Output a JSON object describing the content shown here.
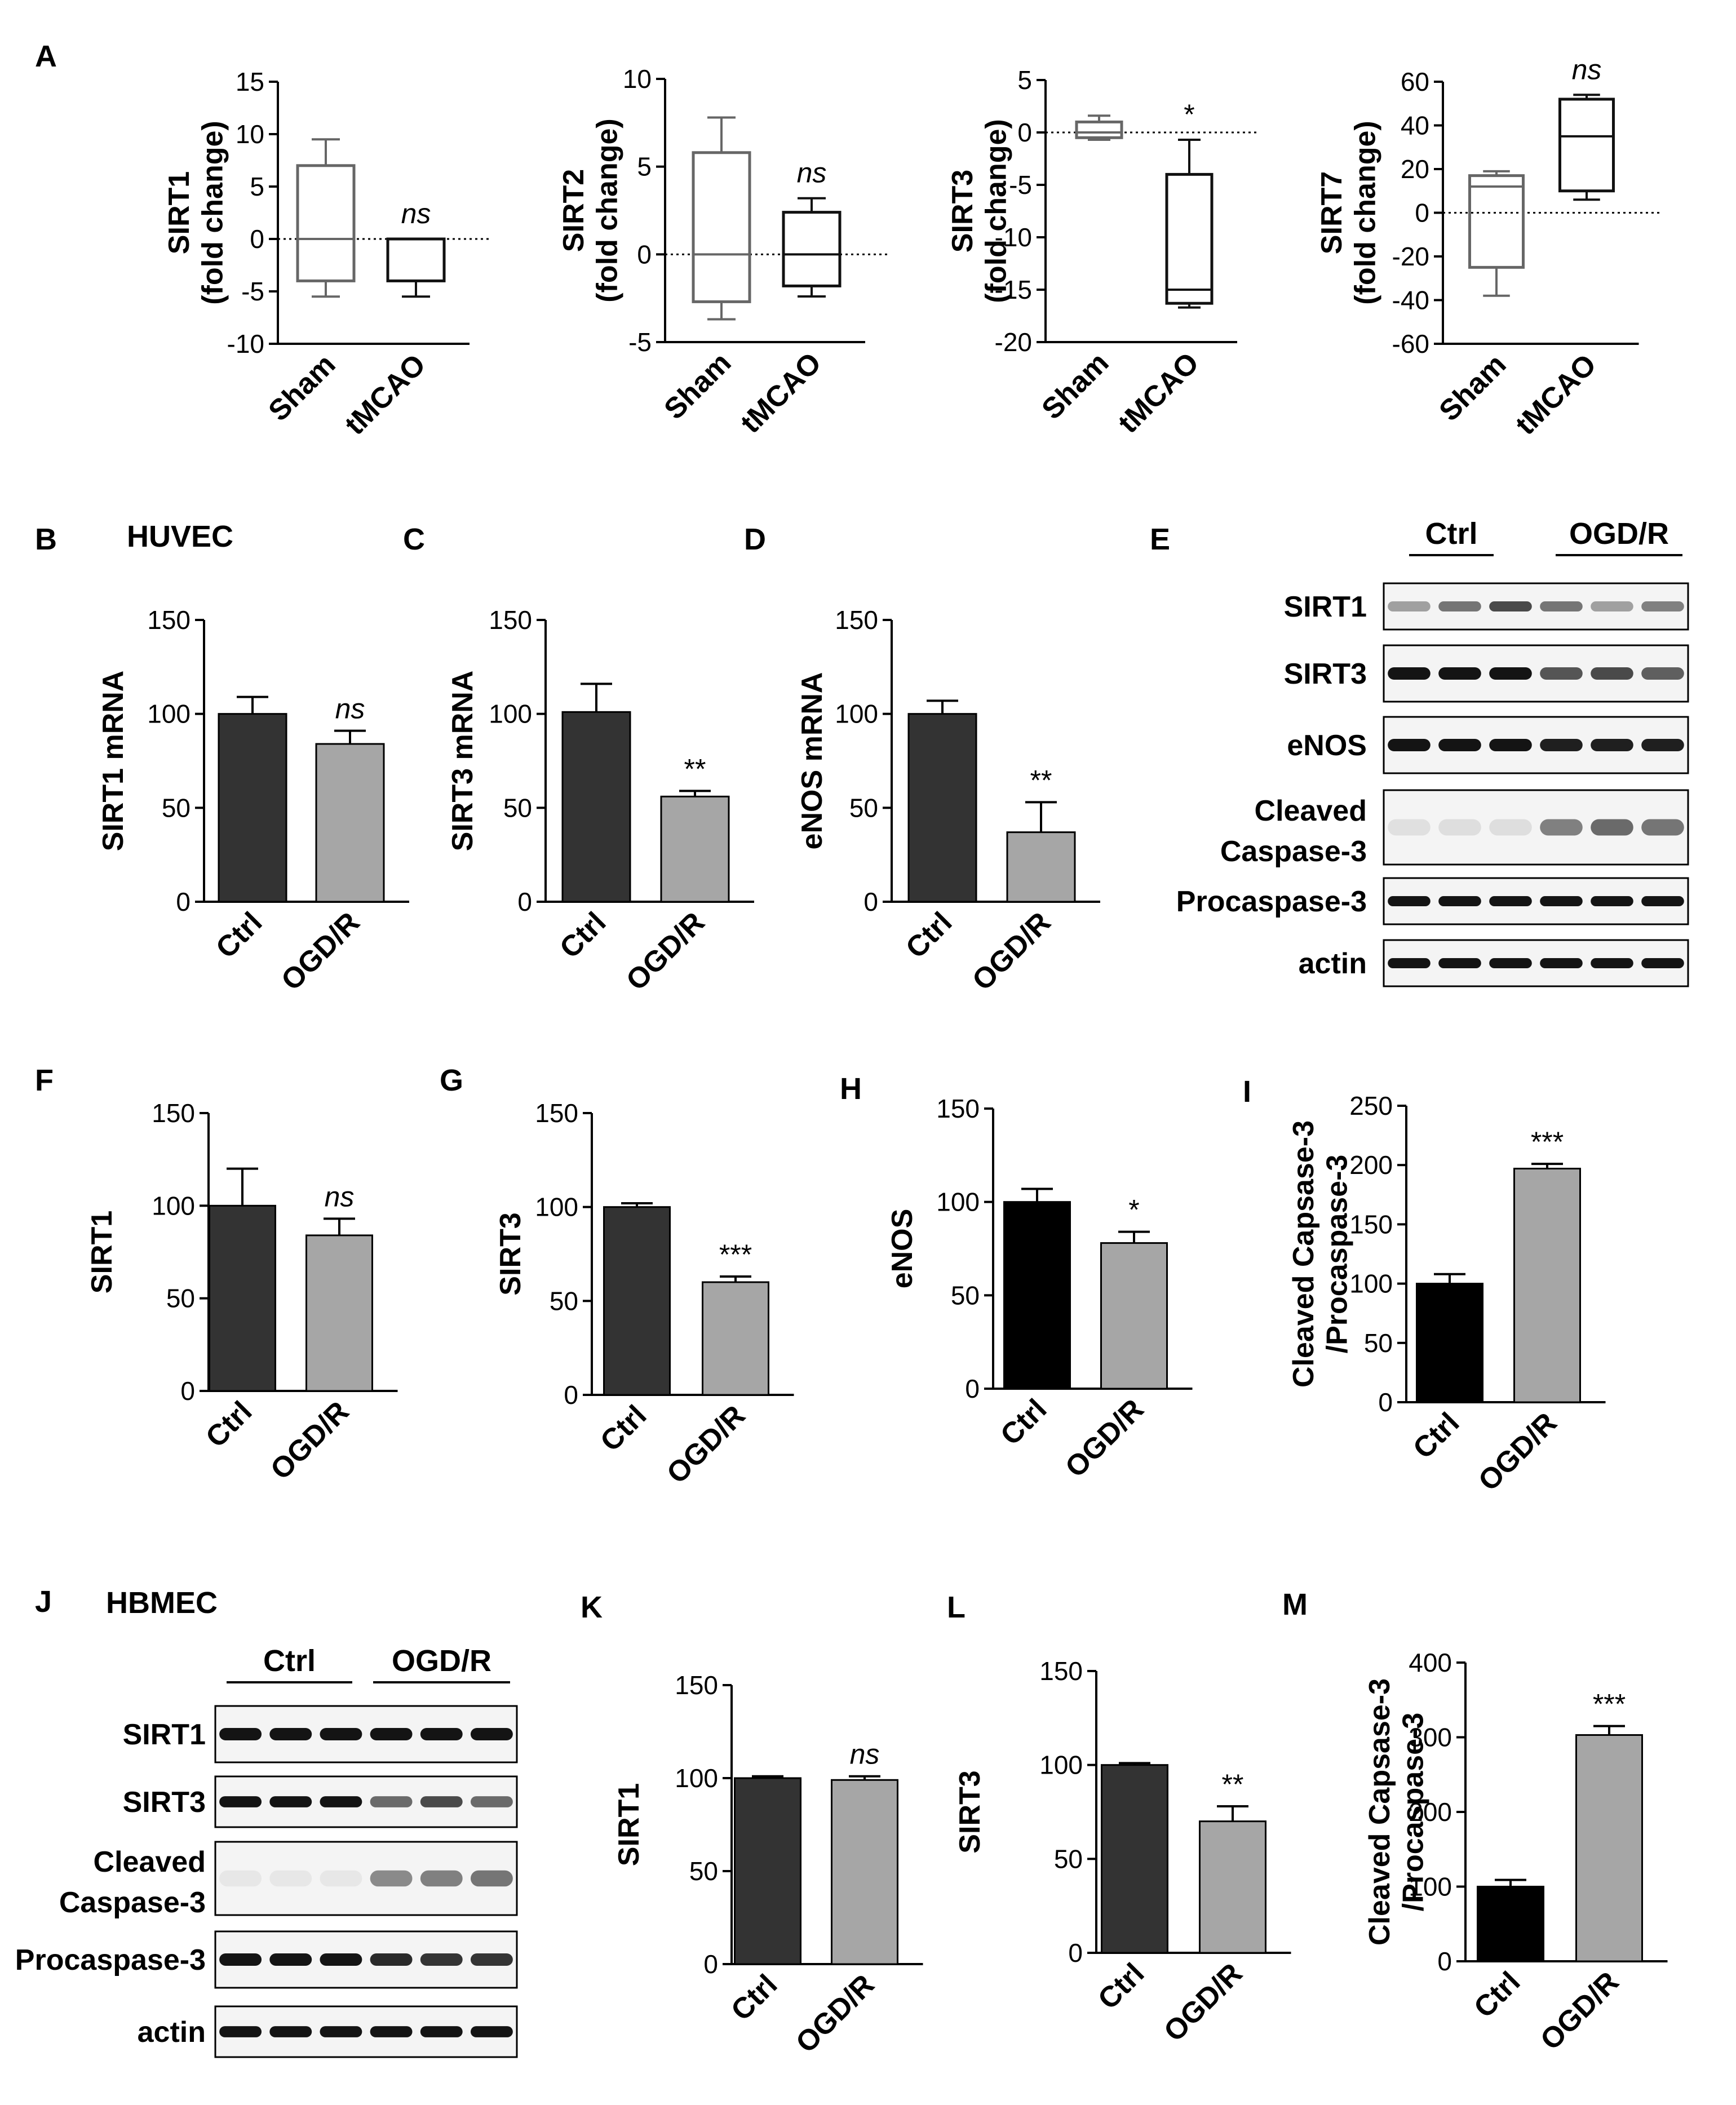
{
  "panel_letters": {
    "A": "A",
    "B": "B",
    "C": "C",
    "D": "D",
    "E": "E",
    "F": "F",
    "G": "G",
    "H": "H",
    "I": "I",
    "J": "J",
    "K": "K",
    "L": "L",
    "M": "M"
  },
  "cell_labels": {
    "huvec": "HUVEC",
    "hbmec": "HBMEC"
  },
  "colors": {
    "ctrl_bar": "#333333",
    "ctrl_bar_black": "#000000",
    "ogdr_bar": "#a6a6a6",
    "box_sham": "#666666",
    "box_tmcao": "#111111",
    "axis": "#000000"
  },
  "chart_data": [
    {
      "id": "A1",
      "panel": "A",
      "type": "box",
      "ylabel": "SIRT1\n(fold change)",
      "ylim": [
        -10,
        15
      ],
      "yticks": [
        "15",
        "10",
        "5",
        "0",
        "-5",
        "-10"
      ],
      "categories": [
        "Sham",
        "tMCAO"
      ],
      "zero_line": true,
      "boxes": [
        {
          "min": -5.5,
          "q1": -4,
          "median": 0,
          "q3": 7,
          "max": 9.5
        },
        {
          "min": -5.5,
          "q1": -4,
          "median": 0,
          "q3": 0,
          "max": 0
        }
      ],
      "annotations": [
        "",
        "ns"
      ]
    },
    {
      "id": "A2",
      "panel": "A",
      "type": "box",
      "ylabel": "SIRT2\n(fold change)",
      "ylim": [
        -5,
        10
      ],
      "yticks": [
        "10",
        "5",
        "0",
        "-5"
      ],
      "categories": [
        "Sham",
        "tMCAO"
      ],
      "zero_line": true,
      "boxes": [
        {
          "min": -3.7,
          "q1": -2.7,
          "median": 0,
          "q3": 5.8,
          "max": 7.8
        },
        {
          "min": -2.4,
          "q1": -1.8,
          "median": 0,
          "q3": 2.4,
          "max": 3.2
        }
      ],
      "annotations": [
        "",
        "ns"
      ]
    },
    {
      "id": "A3",
      "panel": "A",
      "type": "box",
      "ylabel": "SIRT3\n(fold change)",
      "ylim": [
        -20,
        5
      ],
      "yticks": [
        "5",
        "0",
        "-5",
        "-10",
        "-15",
        "-20"
      ],
      "categories": [
        "Sham",
        "tMCAO"
      ],
      "zero_line": true,
      "boxes": [
        {
          "min": -0.7,
          "q1": -0.5,
          "median": 0,
          "q3": 1,
          "max": 1.6
        },
        {
          "min": -16.7,
          "q1": -16.3,
          "median": -15,
          "q3": -4,
          "max": -0.7
        }
      ],
      "annotations": [
        "",
        "*"
      ]
    },
    {
      "id": "A4",
      "panel": "A",
      "type": "box",
      "ylabel": "SIRT7\n(fold change)",
      "ylim": [
        -60,
        60
      ],
      "yticks": [
        "60",
        "40",
        "20",
        "0",
        "-20",
        "-40",
        "-60"
      ],
      "categories": [
        "Sham",
        "tMCAO"
      ],
      "zero_line": true,
      "boxes": [
        {
          "min": -38,
          "q1": -25,
          "median": 12,
          "q3": 17,
          "max": 19
        },
        {
          "min": 6,
          "q1": 10,
          "median": 35,
          "q3": 52,
          "max": 54
        }
      ],
      "annotations": [
        "",
        "ns"
      ]
    },
    {
      "id": "B",
      "panel": "B",
      "type": "bar",
      "ylabel": "SIRT1 mRNA",
      "ylim": [
        0,
        150
      ],
      "yticks": [
        "150",
        "100",
        "50",
        "0"
      ],
      "categories": [
        "Ctrl",
        "OGD/R"
      ],
      "values": [
        100,
        84
      ],
      "errors": [
        9,
        7
      ],
      "annotations": [
        "",
        "ns"
      ]
    },
    {
      "id": "C",
      "panel": "C",
      "type": "bar",
      "ylabel": "SIRT3 mRNA",
      "ylim": [
        0,
        150
      ],
      "yticks": [
        "150",
        "100",
        "50",
        "0"
      ],
      "categories": [
        "Ctrl",
        "OGD/R"
      ],
      "values": [
        101,
        56
      ],
      "errors": [
        15,
        3
      ],
      "annotations": [
        "",
        "**"
      ]
    },
    {
      "id": "D",
      "panel": "D",
      "type": "bar",
      "ylabel": "eNOS mRNA",
      "ylim": [
        0,
        150
      ],
      "yticks": [
        "150",
        "100",
        "50",
        "0"
      ],
      "categories": [
        "Ctrl",
        "OGD/R"
      ],
      "values": [
        100,
        37
      ],
      "errors": [
        7,
        16
      ],
      "annotations": [
        "",
        "**"
      ]
    },
    {
      "id": "F",
      "panel": "F",
      "type": "bar",
      "ylabel": "SIRT1",
      "ylim": [
        0,
        150
      ],
      "yticks": [
        "150",
        "100",
        "50",
        "0"
      ],
      "categories": [
        "Ctrl",
        "OGD/R"
      ],
      "values": [
        100,
        84
      ],
      "errors": [
        20,
        9
      ],
      "annotations": [
        "",
        "ns"
      ]
    },
    {
      "id": "G",
      "panel": "G",
      "type": "bar",
      "ylabel": "SIRT3",
      "ylim": [
        0,
        150
      ],
      "yticks": [
        "150",
        "100",
        "50",
        "0"
      ],
      "categories": [
        "Ctrl",
        "OGD/R"
      ],
      "values": [
        100,
        60
      ],
      "errors": [
        2,
        3
      ],
      "annotations": [
        "",
        "***"
      ]
    },
    {
      "id": "H",
      "panel": "H",
      "type": "bar",
      "ylabel": "eNOS",
      "ylim": [
        0,
        150
      ],
      "yticks": [
        "150",
        "100",
        "50",
        "0"
      ],
      "categories": [
        "Ctrl",
        "OGD/R"
      ],
      "values": [
        100,
        78
      ],
      "errors": [
        7,
        6
      ],
      "annotations": [
        "",
        "*"
      ],
      "ctrl_black": true
    },
    {
      "id": "I",
      "panel": "I",
      "type": "bar",
      "ylabel": "Cleaved Capsase-3\n/Procaspase-3",
      "ylim": [
        0,
        250
      ],
      "yticks": [
        "250",
        "200",
        "150",
        "100",
        "50",
        "0"
      ],
      "categories": [
        "Ctrl",
        "OGD/R"
      ],
      "values": [
        100,
        197
      ],
      "errors": [
        8,
        4
      ],
      "annotations": [
        "",
        "***"
      ],
      "ctrl_black": true
    },
    {
      "id": "K",
      "panel": "K",
      "type": "bar",
      "ylabel": "SIRT1",
      "ylim": [
        0,
        150
      ],
      "yticks": [
        "150",
        "100",
        "50",
        "0"
      ],
      "categories": [
        "Ctrl",
        "OGD/R"
      ],
      "values": [
        100,
        99
      ],
      "errors": [
        1,
        2
      ],
      "annotations": [
        "",
        "ns"
      ]
    },
    {
      "id": "L",
      "panel": "L",
      "type": "bar",
      "ylabel": "SIRT3",
      "ylim": [
        0,
        150
      ],
      "yticks": [
        "150",
        "100",
        "50",
        "0"
      ],
      "categories": [
        "Ctrl",
        "OGD/R"
      ],
      "values": [
        100,
        70
      ],
      "errors": [
        1,
        8
      ],
      "annotations": [
        "",
        "**"
      ]
    },
    {
      "id": "M",
      "panel": "M",
      "type": "bar",
      "ylabel": "Cleaved Capsase-3\n/Procaspase-3",
      "ylim": [
        0,
        400
      ],
      "yticks": [
        "400",
        "300",
        "200",
        "100",
        "0"
      ],
      "categories": [
        "Ctrl",
        "OGD/R"
      ],
      "values": [
        100,
        303
      ],
      "errors": [
        9,
        12
      ],
      "annotations": [
        "",
        "***"
      ],
      "ctrl_black": true
    }
  ],
  "blots": {
    "E": {
      "groups": [
        "Ctrl",
        "OGD/R"
      ],
      "rows": [
        {
          "label": "SIRT1",
          "ctrl": [
            0.35,
            0.55,
            0.75
          ],
          "ogdr": [
            0.55,
            0.35,
            0.5
          ]
        },
        {
          "label": "SIRT3",
          "ctrl": [
            1,
            1,
            1
          ],
          "ogdr": [
            0.7,
            0.75,
            0.65
          ]
        },
        {
          "label": "eNOS",
          "ctrl": [
            1,
            1,
            1
          ],
          "ogdr": [
            0.95,
            0.95,
            0.95
          ]
        },
        {
          "label": "Cleaved\nCaspase-3",
          "ctrl": [
            0.05,
            0.06,
            0.06
          ],
          "ogdr": [
            0.5,
            0.6,
            0.55
          ]
        },
        {
          "label": "Procaspase-3",
          "ctrl": [
            1,
            1,
            1
          ],
          "ogdr": [
            1,
            1,
            1
          ]
        },
        {
          "label": "actin",
          "ctrl": [
            1,
            1,
            1
          ],
          "ogdr": [
            1,
            1,
            1
          ]
        }
      ]
    },
    "J": {
      "groups": [
        "Ctrl",
        "OGD/R"
      ],
      "rows": [
        {
          "label": "SIRT1",
          "ctrl": [
            1,
            1,
            1
          ],
          "ogdr": [
            1,
            1,
            1
          ]
        },
        {
          "label": "SIRT3",
          "ctrl": [
            1,
            1,
            1
          ],
          "ogdr": [
            0.6,
            0.75,
            0.6
          ]
        },
        {
          "label": "Cleaved\nCaspase-3",
          "ctrl": [
            0.02,
            0.02,
            0.02
          ],
          "ogdr": [
            0.45,
            0.5,
            0.55
          ]
        },
        {
          "label": "Procaspase-3",
          "ctrl": [
            1,
            1,
            1
          ],
          "ogdr": [
            0.9,
            0.85,
            0.85
          ]
        },
        {
          "label": "actin",
          "ctrl": [
            1,
            1,
            1
          ],
          "ogdr": [
            1,
            1,
            1
          ]
        }
      ]
    }
  }
}
